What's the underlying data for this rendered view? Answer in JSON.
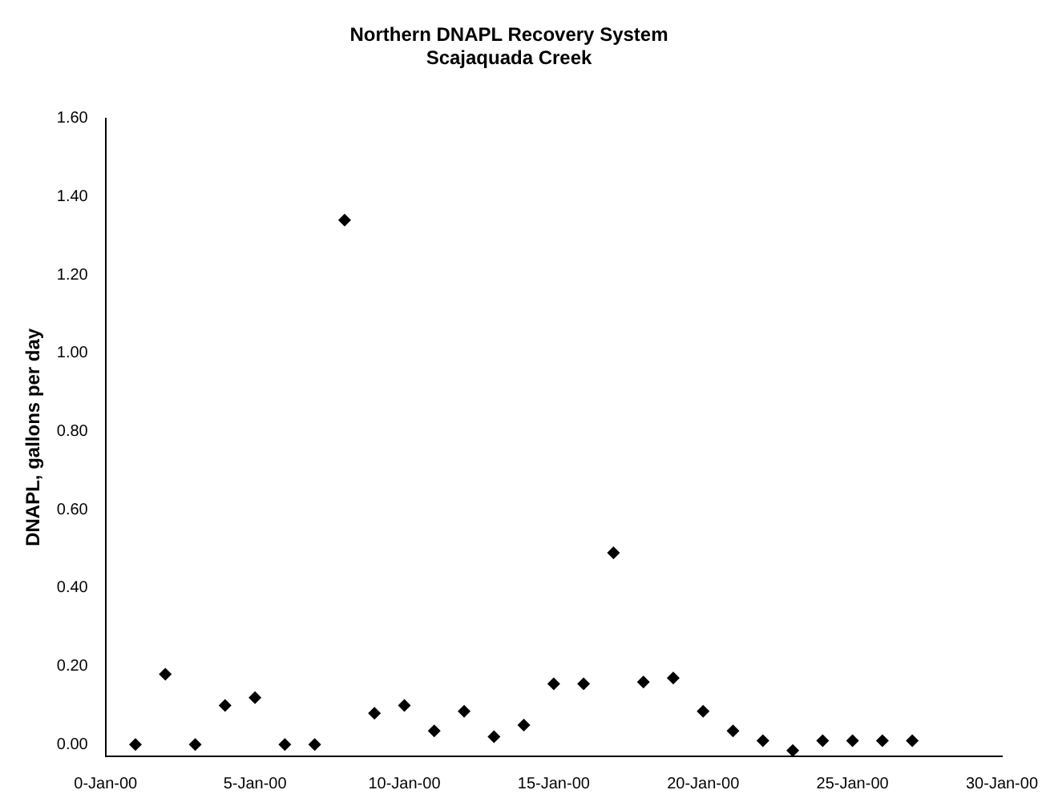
{
  "chart_data": {
    "type": "scatter",
    "title": "Northern DNAPL Recovery System",
    "subtitle": "Scajaquada Creek",
    "ylabel": "DNAPL, gallons per day",
    "categories": [
      "0-Jan-00",
      null,
      null,
      null,
      null,
      "5-Jan-00",
      null,
      null,
      null,
      null,
      "10-Jan-00",
      null,
      null,
      null,
      null,
      "15-Jan-00",
      null,
      null,
      null,
      null,
      "20-Jan-00",
      null,
      null,
      null,
      null,
      "25-Jan-00",
      null,
      null,
      null,
      null,
      "30-Jan-00"
    ],
    "series": [
      {
        "color": "#000000",
        "values": [
          null,
          0.0,
          0.18,
          0.0,
          0.1,
          0.12,
          0.0,
          0.0,
          1.34,
          0.08,
          0.1,
          0.035,
          0.085,
          0.02,
          0.05,
          0.155,
          0.155,
          0.49,
          0.16,
          0.17,
          0.085,
          0.035,
          0.01,
          -0.015,
          0.01,
          0.01,
          0.01,
          0.01,
          null,
          null,
          null
        ]
      }
    ],
    "ylim": [
      -0.03,
      1.6
    ],
    "yticks": [
      {
        "value": 0,
        "label": "0.00"
      },
      {
        "value": 0.2,
        "label": "0.20"
      },
      {
        "value": 0.4,
        "label": "0.40"
      },
      {
        "value": 0.6,
        "label": "0.60"
      },
      {
        "value": 0.8,
        "label": "0.80"
      },
      {
        "value": 1,
        "label": "1.00"
      },
      {
        "value": 1.2,
        "label": "1.20"
      },
      {
        "value": 1.4,
        "label": "1.40"
      },
      {
        "value": 1.6,
        "label": "1.60"
      }
    ],
    "grid": false,
    "legend": false,
    "marker": "diamond"
  }
}
